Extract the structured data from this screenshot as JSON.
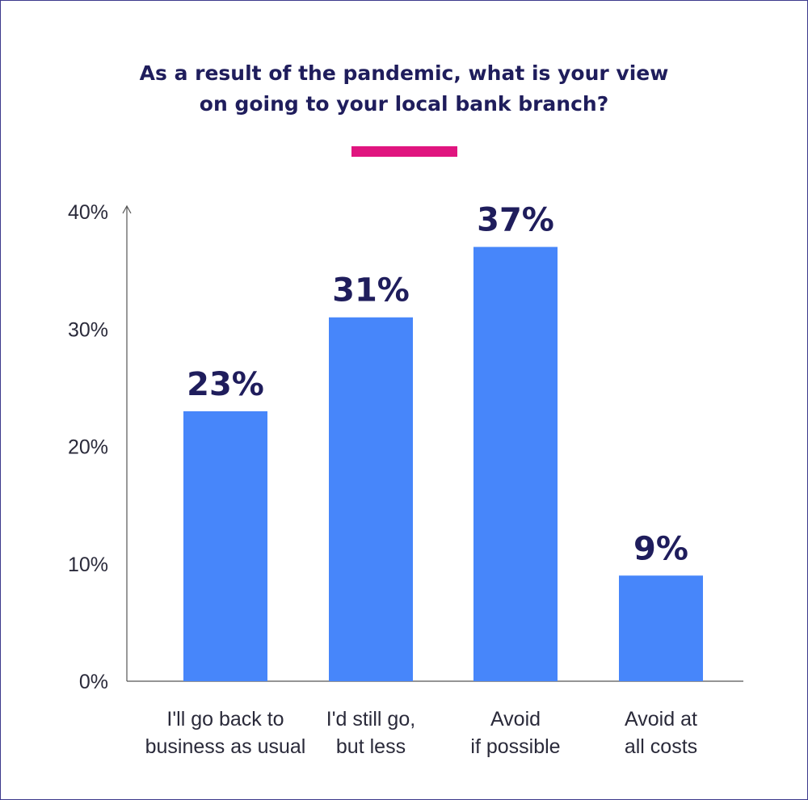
{
  "title_lines": [
    "As a result of the pandemic, what is your view",
    "on going to your local bank branch?"
  ],
  "colors": {
    "bar": "#4786fa",
    "accent": "#e0157f",
    "text": "#1f1d5c",
    "axis": "#555555",
    "frame": "#3d3a8c"
  },
  "chart_data": {
    "type": "bar",
    "title": "As a result of the pandemic, what is your view on going to your local bank branch?",
    "categories": [
      [
        "I'll go back to",
        "business as usual"
      ],
      [
        "I'd still go,",
        "but less"
      ],
      [
        "Avoid",
        "if possible"
      ],
      [
        "Avoid at",
        "all costs"
      ]
    ],
    "values": [
      23,
      31,
      37,
      9
    ],
    "data_labels": [
      "23%",
      "31%",
      "37%",
      "9%"
    ],
    "ylim": [
      0,
      40
    ],
    "yticks": [
      0,
      10,
      20,
      30,
      40
    ],
    "ytick_labels": [
      "0%",
      "10%",
      "20%",
      "30%",
      "40%"
    ],
    "grid": false,
    "legend": "none",
    "xlabel": "",
    "ylabel": ""
  }
}
